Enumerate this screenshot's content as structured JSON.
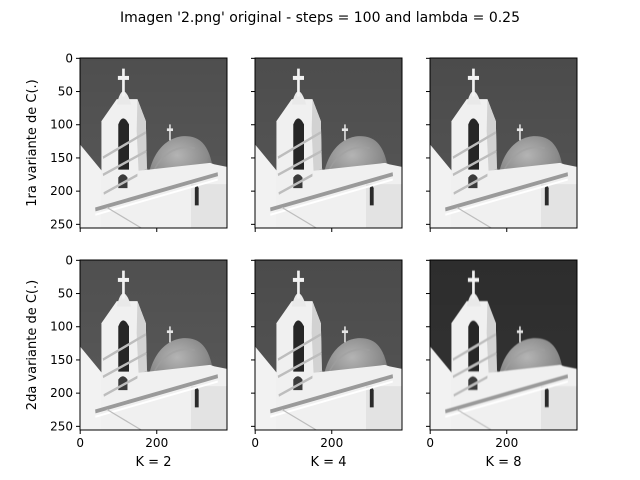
{
  "figure": {
    "title": "Imagen '2.png' original - steps = 100 and lambda = 0.25"
  },
  "chart_data": {
    "type": "image-grid",
    "rows": 2,
    "cols": 3,
    "row_labels": [
      "1ra variante de C(.)",
      "2da variante de C(.)"
    ],
    "col_labels": [
      "K = 2",
      "K = 4",
      "K = 8"
    ],
    "image": {
      "width": 384,
      "height": 256
    },
    "x_ticks": [
      0,
      200
    ],
    "y_ticks": [
      0,
      50,
      100,
      150,
      200,
      250
    ],
    "colormap": "gray",
    "panels": [
      {
        "row": 0,
        "col": 0,
        "sky_gray": "#595959",
        "edge_softness": 0.2
      },
      {
        "row": 0,
        "col": 1,
        "sky_gray": "#575757",
        "edge_softness": 0.35
      },
      {
        "row": 0,
        "col": 2,
        "sky_gray": "#555555",
        "edge_softness": 0.6
      },
      {
        "row": 1,
        "col": 0,
        "sky_gray": "#5a5a5a",
        "edge_softness": 0.2
      },
      {
        "row": 1,
        "col": 1,
        "sky_gray": "#555555",
        "edge_softness": 0.35
      },
      {
        "row": 1,
        "col": 2,
        "sky_gray": "#333333",
        "edge_softness": 0.9
      }
    ]
  }
}
